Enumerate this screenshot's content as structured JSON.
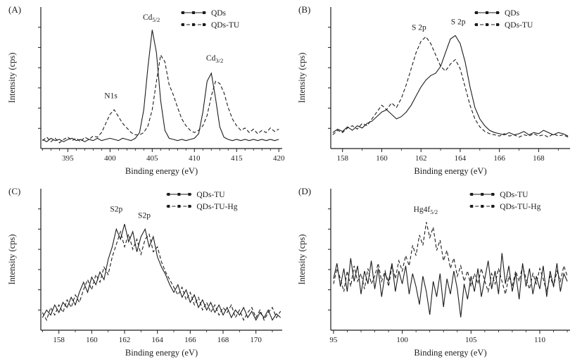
{
  "figure": {
    "background": "#ffffff",
    "line_color": "#1c1c1c",
    "text_color": "#1c1c1c"
  },
  "chart_data": [
    {
      "id": "A",
      "type": "line",
      "panel_label": "(A)",
      "xlabel": "Binding energy (eV)",
      "ylabel": "Intensity (cps)",
      "xlim": [
        391.8,
        420.4
      ],
      "xticks": [
        395,
        400,
        405,
        410,
        415,
        420
      ],
      "minor_step": 1,
      "ylim": [
        -0.04,
        1.2
      ],
      "legend_pos": [
        0.58,
        0.0
      ],
      "legend": [
        {
          "label": "QDs",
          "style": "solid"
        },
        {
          "label": "QDs-TU",
          "style": "dashed"
        }
      ],
      "annotations": [
        {
          "text": "N1s",
          "sub": "",
          "x": 400.1,
          "y": 0.4
        },
        {
          "text": "Cd",
          "sub": "5/2",
          "x": 404.9,
          "y": 1.09
        },
        {
          "text": "Cd",
          "sub": "3/2",
          "x": 412.4,
          "y": 0.73
        }
      ],
      "series": [
        {
          "name": "QDs",
          "style": "solid",
          "x0": 392,
          "dx": 0.5,
          "values": [
            0.04,
            0.02,
            0.05,
            0.03,
            0.04,
            0.02,
            0.04,
            0.05,
            0.03,
            0.04,
            0.02,
            0.04,
            0.03,
            0.05,
            0.03,
            0.04,
            0.05,
            0.04,
            0.03,
            0.05,
            0.04,
            0.03,
            0.05,
            0.1,
            0.3,
            0.68,
            1.0,
            0.8,
            0.38,
            0.12,
            0.05,
            0.04,
            0.03,
            0.04,
            0.03,
            0.04,
            0.05,
            0.09,
            0.28,
            0.55,
            0.62,
            0.4,
            0.15,
            0.06,
            0.04,
            0.03,
            0.04,
            0.03,
            0.04,
            0.03,
            0.04,
            0.03,
            0.04,
            0.03,
            0.04,
            0.03,
            0.04
          ]
        },
        {
          "name": "QDs-TU",
          "style": "dashed",
          "x0": 392,
          "dx": 0.5,
          "values": [
            0.03,
            0.06,
            0.02,
            0.05,
            0.01,
            0.04,
            0.06,
            0.03,
            0.05,
            0.02,
            0.06,
            0.04,
            0.07,
            0.06,
            0.1,
            0.18,
            0.26,
            0.3,
            0.24,
            0.18,
            0.14,
            0.1,
            0.08,
            0.08,
            0.1,
            0.16,
            0.3,
            0.55,
            0.78,
            0.72,
            0.52,
            0.43,
            0.32,
            0.22,
            0.16,
            0.12,
            0.1,
            0.12,
            0.16,
            0.25,
            0.42,
            0.55,
            0.53,
            0.45,
            0.32,
            0.22,
            0.16,
            0.12,
            0.14,
            0.1,
            0.13,
            0.09,
            0.12,
            0.1,
            0.14,
            0.11,
            0.13
          ]
        }
      ]
    },
    {
      "id": "B",
      "type": "line",
      "panel_label": "(B)",
      "xlabel": "Binding energy (eV)",
      "ylabel": "Intensity (cps)",
      "xlim": [
        157.4,
        169.6
      ],
      "xticks": [
        158,
        160,
        162,
        164,
        166,
        168
      ],
      "minor_step": 1,
      "ylim": [
        -0.04,
        1.2
      ],
      "legend_pos": [
        0.6,
        0.0
      ],
      "legend": [
        {
          "label": "QDs",
          "style": "solid"
        },
        {
          "label": "QDs-TU",
          "style": "dashed"
        }
      ],
      "annotations": [
        {
          "text": "S 2p",
          "sub": "",
          "x": 161.9,
          "y": 1.0
        },
        {
          "text": "S 2p",
          "sub": "",
          "x": 163.9,
          "y": 1.05
        }
      ],
      "series": [
        {
          "name": "QDs",
          "style": "solid",
          "x0": 157.5,
          "dx": 0.25,
          "values": [
            0.1,
            0.13,
            0.11,
            0.15,
            0.12,
            0.16,
            0.14,
            0.18,
            0.2,
            0.24,
            0.28,
            0.3,
            0.26,
            0.22,
            0.24,
            0.28,
            0.34,
            0.42,
            0.5,
            0.56,
            0.6,
            0.62,
            0.68,
            0.8,
            0.92,
            0.95,
            0.88,
            0.72,
            0.5,
            0.32,
            0.22,
            0.16,
            0.12,
            0.1,
            0.09,
            0.08,
            0.1,
            0.08,
            0.09,
            0.11,
            0.08,
            0.1,
            0.09,
            0.12,
            0.1,
            0.08,
            0.1,
            0.09,
            0.07
          ]
        },
        {
          "name": "QDs-TU",
          "style": "dashed",
          "x0": 157.5,
          "dx": 0.25,
          "values": [
            0.08,
            0.12,
            0.1,
            0.14,
            0.16,
            0.13,
            0.18,
            0.16,
            0.22,
            0.28,
            0.34,
            0.3,
            0.36,
            0.32,
            0.4,
            0.52,
            0.66,
            0.8,
            0.9,
            0.94,
            0.88,
            0.78,
            0.68,
            0.64,
            0.7,
            0.74,
            0.66,
            0.5,
            0.34,
            0.22,
            0.15,
            0.11,
            0.09,
            0.08,
            0.07,
            0.09,
            0.07,
            0.08,
            0.06,
            0.08,
            0.07,
            0.09,
            0.07,
            0.08,
            0.06,
            0.09,
            0.07,
            0.08,
            0.06
          ]
        }
      ]
    },
    {
      "id": "C",
      "type": "line",
      "panel_label": "(C)",
      "xlabel": "Binding energy (eV)",
      "ylabel": "Intensity (cps)",
      "xlim": [
        156.9,
        171.6
      ],
      "xticks": [
        158,
        160,
        162,
        164,
        166,
        168,
        170
      ],
      "minor_step": 1,
      "ylim": [
        0,
        1.12
      ],
      "legend_pos": [
        0.52,
        0.0
      ],
      "legend": [
        {
          "label": "QDs-TU",
          "style": "solid"
        },
        {
          "label": "QDs-TU-Hg",
          "style": "dashed"
        }
      ],
      "annotations": [
        {
          "text": "S2p",
          "sub": "",
          "x": 161.5,
          "y": 0.94
        },
        {
          "text": "S2p",
          "sub": "",
          "x": 163.2,
          "y": 0.89
        }
      ],
      "series": [
        {
          "name": "QDs-TU",
          "style": "solid",
          "x0": 157.0,
          "dx": 0.25,
          "values": [
            0.1,
            0.16,
            0.12,
            0.2,
            0.14,
            0.22,
            0.18,
            0.26,
            0.2,
            0.3,
            0.38,
            0.3,
            0.42,
            0.36,
            0.46,
            0.4,
            0.56,
            0.66,
            0.8,
            0.72,
            0.84,
            0.7,
            0.78,
            0.62,
            0.74,
            0.8,
            0.66,
            0.74,
            0.58,
            0.5,
            0.44,
            0.36,
            0.3,
            0.36,
            0.26,
            0.32,
            0.22,
            0.28,
            0.18,
            0.24,
            0.16,
            0.22,
            0.14,
            0.2,
            0.12,
            0.18,
            0.1,
            0.16,
            0.12,
            0.18,
            0.1,
            0.15,
            0.08,
            0.14,
            0.1,
            0.16,
            0.08,
            0.13,
            0.1
          ]
        },
        {
          "name": "QDs-TU-Hg",
          "style": "dashed",
          "x0": 157.0,
          "dx": 0.25,
          "values": [
            0.14,
            0.08,
            0.18,
            0.12,
            0.2,
            0.14,
            0.24,
            0.18,
            0.28,
            0.22,
            0.32,
            0.4,
            0.32,
            0.44,
            0.38,
            0.5,
            0.44,
            0.58,
            0.68,
            0.78,
            0.66,
            0.76,
            0.64,
            0.72,
            0.6,
            0.72,
            0.76,
            0.62,
            0.66,
            0.54,
            0.46,
            0.4,
            0.34,
            0.28,
            0.34,
            0.24,
            0.3,
            0.2,
            0.26,
            0.16,
            0.22,
            0.14,
            0.2,
            0.12,
            0.18,
            0.14,
            0.2,
            0.1,
            0.16,
            0.08,
            0.14,
            0.18,
            0.1,
            0.16,
            0.08,
            0.14,
            0.18,
            0.1,
            0.15
          ]
        }
      ]
    },
    {
      "id": "D",
      "type": "line",
      "panel_label": "(D)",
      "xlabel": "Binding energy (eV)",
      "ylabel": "Intensity (cps)",
      "xlim": [
        94.8,
        112.2
      ],
      "xticks": [
        95,
        100,
        105,
        110
      ],
      "minor_step": 1,
      "ylim": [
        0,
        1.1
      ],
      "legend_pos": [
        0.58,
        0.0
      ],
      "legend": [
        {
          "label": "QDs-TU",
          "style": "solid"
        },
        {
          "label": "QDs-TU-Hg",
          "style": "dashed"
        }
      ],
      "annotations": [
        {
          "text": "Hg4f",
          "sub": "5/2",
          "x": 101.7,
          "y": 0.92
        }
      ],
      "series": [
        {
          "name": "QDs-TU",
          "style": "solid",
          "x0": 95.0,
          "dx": 0.25,
          "values": [
            0.4,
            0.52,
            0.34,
            0.48,
            0.3,
            0.56,
            0.38,
            0.5,
            0.28,
            0.46,
            0.36,
            0.54,
            0.32,
            0.48,
            0.26,
            0.44,
            0.38,
            0.52,
            0.3,
            0.46,
            0.36,
            0.5,
            0.28,
            0.44,
            0.34,
            0.2,
            0.42,
            0.3,
            0.12,
            0.38,
            0.26,
            0.44,
            0.18,
            0.4,
            0.28,
            0.46,
            0.32,
            0.1,
            0.36,
            0.24,
            0.42,
            0.3,
            0.48,
            0.26,
            0.4,
            0.54,
            0.32,
            0.46,
            0.28,
            0.6,
            0.36,
            0.5,
            0.3,
            0.44,
            0.24,
            0.52,
            0.34,
            0.48,
            0.28,
            0.42,
            0.32,
            0.5,
            0.26,
            0.46,
            0.34,
            0.52,
            0.3,
            0.44,
            0.38
          ]
        },
        {
          "name": "QDs-TU-Hg",
          "style": "dashed",
          "x0": 95.0,
          "dx": 0.25,
          "values": [
            0.36,
            0.48,
            0.4,
            0.3,
            0.46,
            0.34,
            0.5,
            0.38,
            0.44,
            0.32,
            0.48,
            0.36,
            0.42,
            0.52,
            0.38,
            0.46,
            0.34,
            0.5,
            0.4,
            0.54,
            0.46,
            0.58,
            0.5,
            0.66,
            0.58,
            0.74,
            0.66,
            0.84,
            0.72,
            0.8,
            0.62,
            0.7,
            0.54,
            0.62,
            0.48,
            0.56,
            0.42,
            0.5,
            0.38,
            0.46,
            0.34,
            0.44,
            0.36,
            0.48,
            0.38,
            0.3,
            0.44,
            0.36,
            0.48,
            0.38,
            0.28,
            0.42,
            0.34,
            0.46,
            0.38,
            0.5,
            0.4,
            0.32,
            0.44,
            0.36,
            0.48,
            0.4,
            0.3,
            0.42,
            0.34,
            0.46,
            0.38,
            0.5,
            0.42
          ]
        }
      ]
    }
  ]
}
